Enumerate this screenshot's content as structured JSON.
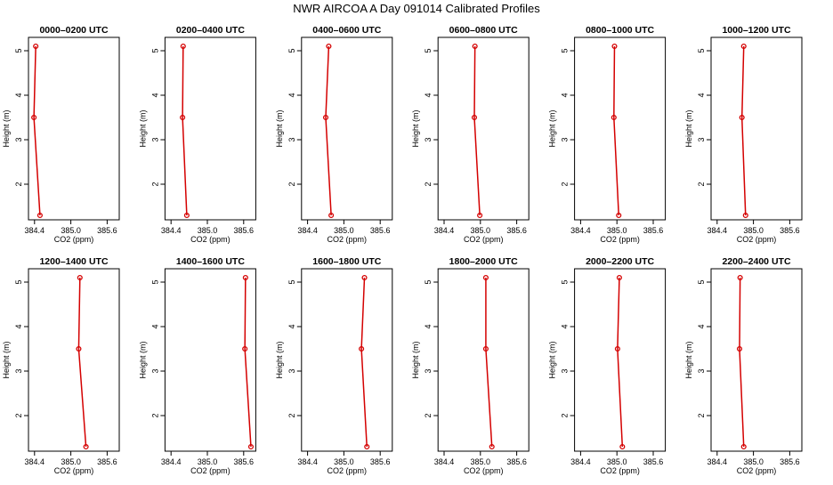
{
  "title": "NWR AIRCOA A  Day 091014  Calibrated Profiles",
  "colors": {
    "line": "#d40000",
    "axis": "#000000",
    "background": "#ffffff"
  },
  "chart_data": {
    "type": "line",
    "grid": false,
    "xlabel": "CO2 (ppm)",
    "ylabel": "Height (m)",
    "xlim": [
      384.3,
      385.8
    ],
    "ylim": [
      1.2,
      5.3
    ],
    "xticks": [
      "384.4",
      "385.0",
      "385.6"
    ],
    "yticks": [
      "2",
      "3",
      "4",
      "5"
    ],
    "heights": [
      5.1,
      3.5,
      1.3
    ],
    "panels": [
      {
        "title": "0000–0200 UTC",
        "values": [
          384.42,
          384.39,
          384.49
        ]
      },
      {
        "title": "0200–0400 UTC",
        "values": [
          384.6,
          384.59,
          384.66
        ]
      },
      {
        "title": "0400–0600 UTC",
        "values": [
          384.75,
          384.7,
          384.79
        ]
      },
      {
        "title": "0600–0800 UTC",
        "values": [
          384.91,
          384.9,
          384.99
        ]
      },
      {
        "title": "0800–1000 UTC",
        "values": [
          384.96,
          384.95,
          385.03
        ]
      },
      {
        "title": "1000–1200 UTC",
        "values": [
          384.84,
          384.81,
          384.87
        ]
      },
      {
        "title": "1200–1400 UTC",
        "values": [
          385.15,
          385.13,
          385.25
        ]
      },
      {
        "title": "1400–1600 UTC",
        "values": [
          385.63,
          385.62,
          385.72
        ]
      },
      {
        "title": "1600–1800 UTC",
        "values": [
          385.34,
          385.29,
          385.38
        ]
      },
      {
        "title": "1800–2000 UTC",
        "values": [
          385.09,
          385.09,
          385.19
        ]
      },
      {
        "title": "2000–2200 UTC",
        "values": [
          385.04,
          385.01,
          385.09
        ]
      },
      {
        "title": "2200–2400 UTC",
        "values": [
          384.78,
          384.77,
          384.84
        ]
      }
    ]
  }
}
